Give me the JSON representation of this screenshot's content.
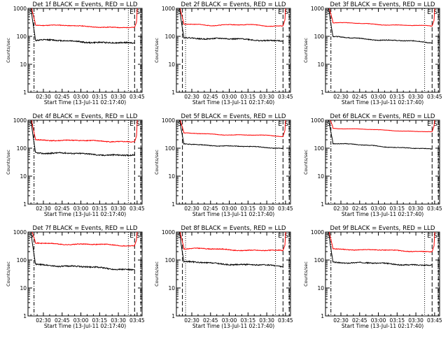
{
  "chart_data": [
    {
      "type": "line",
      "title": "Det 1f BLACK = Events, RED = LLD",
      "xlabel": "Start Time (13-Jul-11 02:17:40)",
      "ylabel": "Counts/sec",
      "y_scale": "log",
      "ylim": [
        1,
        1000
      ],
      "y_ticks": [
        "1",
        "10",
        "100",
        "1000"
      ],
      "x_ticks": [
        "02:30",
        "02:45",
        "03:00",
        "03:15",
        "03:30",
        "03:45"
      ],
      "x_range_minutes": [
        17.67,
        109.0
      ],
      "markers": {
        "left": "S",
        "right_e": "E",
        "right_s": "S"
      },
      "grid": false,
      "series": [
        {
          "color": "#ff0000",
          "level": 260,
          "end": 200,
          "wiggle": 0.03,
          "noise": 0.025,
          "seed": 11
        },
        {
          "color": "#000000",
          "level": 75,
          "end": 55,
          "wiggle": 0.04,
          "noise": 0.05,
          "seed": 12
        }
      ],
      "vlines": [
        {
          "minute": 22.5,
          "style": "dash-dot"
        },
        {
          "minute": 98.0,
          "style": "dot"
        },
        {
          "minute": 103.0,
          "style": "dash"
        },
        {
          "minute": 108.0,
          "style": "dash"
        }
      ]
    },
    {
      "type": "line",
      "title": "Det 2f BLACK = Events, RED = LLD",
      "xlabel": "Start Time (13-Jul-11 02:17:40)",
      "ylabel": "Counts/sec",
      "y_scale": "log",
      "ylim": [
        1,
        1000
      ],
      "y_ticks": [
        "1",
        "10",
        "100",
        "1000"
      ],
      "x_ticks": [
        "02:30",
        "02:45",
        "03:00",
        "03:15",
        "03:30",
        "03:45"
      ],
      "x_range_minutes": [
        17.67,
        109.0
      ],
      "markers": {
        "left": "S",
        "right_e": "E",
        "right_s": "S"
      },
      "grid": false,
      "series": [
        {
          "color": "#ff0000",
          "level": 270,
          "end": 240,
          "wiggle": 0.05,
          "noise": 0.02,
          "seed": 21
        },
        {
          "color": "#000000",
          "level": 90,
          "end": 70,
          "wiggle": 0.04,
          "noise": 0.045,
          "seed": 22
        }
      ],
      "vlines": [
        {
          "minute": 22.5,
          "style": "dash"
        },
        {
          "minute": 25.0,
          "style": "dot"
        },
        {
          "minute": 97.0,
          "style": "dot"
        },
        {
          "minute": 103.0,
          "style": "dash"
        },
        {
          "minute": 108.0,
          "style": "dash"
        }
      ]
    },
    {
      "type": "line",
      "title": "Det 3f BLACK = Events, RED = LLD",
      "xlabel": "Start Time (13-Jul-11 02:17:40)",
      "ylabel": "Counts/sec",
      "y_scale": "log",
      "ylim": [
        1,
        1000
      ],
      "y_ticks": [
        "1",
        "10",
        "100",
        "1000"
      ],
      "x_ticks": [
        "02:30",
        "02:45",
        "03:00",
        "03:15",
        "03:30",
        "03:45"
      ],
      "x_range_minutes": [
        17.67,
        109.0
      ],
      "markers": {
        "left": "S",
        "right_e": "E",
        "right_s": "S"
      },
      "grid": false,
      "series": [
        {
          "color": "#ff0000",
          "level": 310,
          "end": 230,
          "wiggle": 0.03,
          "noise": 0.015,
          "seed": 31
        },
        {
          "color": "#000000",
          "level": 95,
          "end": 60,
          "wiggle": 0.04,
          "noise": 0.03,
          "seed": 32
        }
      ],
      "vlines": [
        {
          "minute": 22.0,
          "style": "dash-dot"
        },
        {
          "minute": 97.0,
          "style": "dot"
        },
        {
          "minute": 103.0,
          "style": "dash"
        },
        {
          "minute": 108.0,
          "style": "dash"
        }
      ]
    },
    {
      "type": "line",
      "title": "Det 4f BLACK = Events, RED = LLD",
      "xlabel": "Start Time (13-Jul-11 02:17:40)",
      "ylabel": "Counts/sec",
      "y_scale": "log",
      "ylim": [
        1,
        1000
      ],
      "y_ticks": [
        "1",
        "10",
        "100",
        "1000"
      ],
      "x_ticks": [
        "02:30",
        "02:45",
        "03:00",
        "03:15",
        "03:30",
        "03:45"
      ],
      "x_range_minutes": [
        17.67,
        109.0
      ],
      "markers": {
        "left": "S",
        "right_e": "E",
        "right_s": "S"
      },
      "grid": false,
      "series": [
        {
          "color": "#ff0000",
          "level": 200,
          "end": 170,
          "wiggle": 0.03,
          "noise": 0.035,
          "seed": 41
        },
        {
          "color": "#000000",
          "level": 70,
          "end": 55,
          "wiggle": 0.04,
          "noise": 0.05,
          "seed": 42
        }
      ],
      "vlines": [
        {
          "minute": 22.5,
          "style": "dash-dot"
        },
        {
          "minute": 98.0,
          "style": "dot"
        },
        {
          "minute": 103.0,
          "style": "dash"
        },
        {
          "minute": 108.0,
          "style": "dash"
        }
      ]
    },
    {
      "type": "line",
      "title": "Det 5f BLACK = Events, RED = LLD",
      "xlabel": "Start Time (13-Jul-11 02:17:40)",
      "ylabel": "Counts/sec",
      "y_scale": "log",
      "ylim": [
        1,
        1000
      ],
      "y_ticks": [
        "1",
        "10",
        "100",
        "1000"
      ],
      "x_ticks": [
        "02:30",
        "02:45",
        "03:00",
        "03:15",
        "03:30",
        "03:45"
      ],
      "x_range_minutes": [
        17.67,
        109.0
      ],
      "markers": {
        "left": "S",
        "right_e": "E",
        "right_s": "S"
      },
      "grid": false,
      "series": [
        {
          "color": "#ff0000",
          "level": 340,
          "end": 270,
          "wiggle": 0.03,
          "noise": 0.015,
          "seed": 51
        },
        {
          "color": "#000000",
          "level": 140,
          "end": 100,
          "wiggle": 0.03,
          "noise": 0.025,
          "seed": 52
        }
      ],
      "vlines": [
        {
          "minute": 22.5,
          "style": "dash"
        },
        {
          "minute": 97.0,
          "style": "dot"
        },
        {
          "minute": 103.0,
          "style": "dash"
        },
        {
          "minute": 108.0,
          "style": "dash"
        }
      ]
    },
    {
      "type": "line",
      "title": "Det 6f BLACK = Events, RED = LLD",
      "xlabel": "Start Time (13-Jul-11 02:17:40)",
      "ylabel": "Counts/sec",
      "y_scale": "log",
      "ylim": [
        1,
        1000
      ],
      "y_ticks": [
        "1",
        "10",
        "100",
        "1000"
      ],
      "x_ticks": [
        "02:30",
        "02:45",
        "03:00",
        "03:15",
        "03:30",
        "03:45"
      ],
      "x_range_minutes": [
        17.67,
        109.0
      ],
      "markers": {
        "left": "S",
        "right_e": "E",
        "right_s": "S"
      },
      "grid": false,
      "series": [
        {
          "color": "#ff0000",
          "level": 520,
          "end": 380,
          "wiggle": 0.02,
          "noise": 0.01,
          "seed": 61
        },
        {
          "color": "#000000",
          "level": 150,
          "end": 90,
          "wiggle": 0.03,
          "noise": 0.02,
          "seed": 62
        }
      ],
      "vlines": [
        {
          "minute": 22.0,
          "style": "dash-dot"
        },
        {
          "minute": 103.0,
          "style": "dash"
        },
        {
          "minute": 108.0,
          "style": "dash"
        }
      ]
    },
    {
      "type": "line",
      "title": "Det 7f BLACK = Events, RED = LLD",
      "xlabel": "Start Time (13-Jul-11 02:17:40)",
      "ylabel": "Counts/sec",
      "y_scale": "log",
      "ylim": [
        1,
        1000
      ],
      "y_ticks": [
        "1",
        "10",
        "100",
        "1000"
      ],
      "x_ticks": [
        "02:30",
        "02:45",
        "03:00",
        "03:15",
        "03:30",
        "03:45"
      ],
      "x_range_minutes": [
        17.67,
        109.0
      ],
      "markers": {
        "left": "S",
        "right_e": "E",
        "right_s": "S"
      },
      "grid": false,
      "series": [
        {
          "color": "#ff0000",
          "level": 400,
          "end": 330,
          "wiggle": 0.04,
          "noise": 0.03,
          "seed": 71
        },
        {
          "color": "#000000",
          "level": 70,
          "end": 45,
          "wiggle": 0.04,
          "noise": 0.05,
          "seed": 72
        }
      ],
      "vlines": [
        {
          "minute": 22.5,
          "style": "dash-dot"
        },
        {
          "minute": 98.0,
          "style": "dot"
        },
        {
          "minute": 103.0,
          "style": "dash"
        },
        {
          "minute": 108.0,
          "style": "dash"
        }
      ]
    },
    {
      "type": "line",
      "title": "Det 8f BLACK = Events, RED = LLD",
      "xlabel": "Start Time (13-Jul-11 02:17:40)",
      "ylabel": "Counts/sec",
      "y_scale": "log",
      "ylim": [
        1,
        1000
      ],
      "y_ticks": [
        "1",
        "10",
        "100",
        "1000"
      ],
      "x_ticks": [
        "02:30",
        "02:45",
        "03:00",
        "03:15",
        "03:30",
        "03:45"
      ],
      "x_range_minutes": [
        17.67,
        109.0
      ],
      "markers": {
        "left": "S",
        "right_e": "E",
        "right_s": "S"
      },
      "grid": false,
      "series": [
        {
          "color": "#ff0000",
          "level": 260,
          "end": 210,
          "wiggle": 0.04,
          "noise": 0.03,
          "seed": 81
        },
        {
          "color": "#000000",
          "level": 85,
          "end": 60,
          "wiggle": 0.04,
          "noise": 0.045,
          "seed": 82
        }
      ],
      "vlines": [
        {
          "minute": 22.5,
          "style": "dash"
        },
        {
          "minute": 25.0,
          "style": "dot"
        },
        {
          "minute": 97.0,
          "style": "dot"
        },
        {
          "minute": 103.0,
          "style": "dash"
        },
        {
          "minute": 108.0,
          "style": "dash"
        }
      ]
    },
    {
      "type": "line",
      "title": "Det 9f BLACK = Events, RED = LLD",
      "xlabel": "Start Time (13-Jul-11 02:17:40)",
      "ylabel": "Counts/sec",
      "y_scale": "log",
      "ylim": [
        1,
        1000
      ],
      "y_ticks": [
        "1",
        "10",
        "100",
        "1000"
      ],
      "x_ticks": [
        "02:30",
        "02:45",
        "03:00",
        "03:15",
        "03:30",
        "03:45"
      ],
      "x_range_minutes": [
        17.67,
        109.0
      ],
      "markers": {
        "left": "S",
        "right_e": "E",
        "right_s": "S"
      },
      "grid": false,
      "series": [
        {
          "color": "#ff0000",
          "level": 250,
          "end": 200,
          "wiggle": 0.03,
          "noise": 0.025,
          "seed": 91
        },
        {
          "color": "#000000",
          "level": 85,
          "end": 65,
          "wiggle": 0.04,
          "noise": 0.04,
          "seed": 92
        }
      ],
      "vlines": [
        {
          "minute": 22.0,
          "style": "dash-dot"
        },
        {
          "minute": 97.0,
          "style": "dot"
        },
        {
          "minute": 103.0,
          "style": "dash"
        },
        {
          "minute": 108.0,
          "style": "dash"
        }
      ]
    }
  ]
}
